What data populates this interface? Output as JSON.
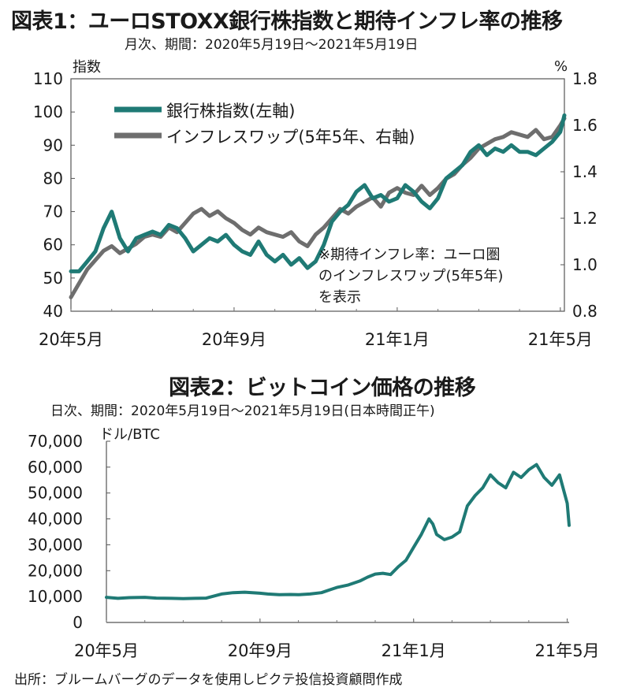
{
  "chart1": {
    "title": "図表1：ユーロSTOXX銀行株指数と期待インフレ率の推移",
    "subtitle": "月次、期間：2020年5月19日～2021年5月19日",
    "left_unit": "指数",
    "right_unit": "%",
    "note": "※期待インフレ率：ユーロ圏\nのインフレスワップ(5年5年)\nを表示",
    "colors": {
      "teal": "#1f7a75",
      "gray": "#6e6e6e"
    }
  },
  "chart2": {
    "title": "図表2：ビットコイン価格の推移",
    "subtitle": "日次、期間：2020年5月19日～2021年5月19日(日本時間正午)",
    "unit": "ドル/BTC",
    "colors": {
      "teal": "#1f7a75"
    }
  },
  "source": "出所：ブルームバーグのデータを使用しピクテ投信投資顧問作成",
  "chart_data": [
    {
      "type": "line",
      "x_ticks": [
        "20年5月",
        "20年9月",
        "21年1月",
        "21年5月"
      ],
      "x_tick_positions": [
        0,
        4,
        8,
        12
      ],
      "x_range": [
        0,
        12.1
      ],
      "y_left": {
        "range": [
          40,
          110
        ],
        "ticks": [
          40,
          50,
          60,
          70,
          80,
          90,
          100,
          110
        ]
      },
      "y_right": {
        "range": [
          0.8,
          1.8
        ],
        "ticks": [
          "0.8",
          "1.0",
          "1.2",
          "1.4",
          "1.6",
          "1.8"
        ]
      },
      "grid": false,
      "legend_placement": "top-left",
      "series": [
        {
          "name": "銀行株指数(左軸)",
          "axis": "left",
          "color": "#1f7a75",
          "points": [
            [
              0,
              52
            ],
            [
              0.2,
              52
            ],
            [
              0.4,
              55
            ],
            [
              0.6,
              58
            ],
            [
              0.8,
              65
            ],
            [
              1.0,
              70
            ],
            [
              1.1,
              66
            ],
            [
              1.2,
              62
            ],
            [
              1.4,
              58
            ],
            [
              1.6,
              62
            ],
            [
              1.8,
              63
            ],
            [
              2.0,
              64
            ],
            [
              2.2,
              63
            ],
            [
              2.4,
              66
            ],
            [
              2.6,
              65
            ],
            [
              2.8,
              62
            ],
            [
              3.0,
              58
            ],
            [
              3.2,
              60
            ],
            [
              3.4,
              62
            ],
            [
              3.6,
              61
            ],
            [
              3.8,
              63
            ],
            [
              4.0,
              60
            ],
            [
              4.2,
              58
            ],
            [
              4.4,
              57
            ],
            [
              4.6,
              61
            ],
            [
              4.8,
              57
            ],
            [
              5.0,
              55
            ],
            [
              5.2,
              57
            ],
            [
              5.4,
              54
            ],
            [
              5.6,
              56
            ],
            [
              5.8,
              53
            ],
            [
              6.0,
              55
            ],
            [
              6.2,
              60
            ],
            [
              6.4,
              67
            ],
            [
              6.6,
              70
            ],
            [
              6.8,
              72
            ],
            [
              7.0,
              76
            ],
            [
              7.2,
              78
            ],
            [
              7.4,
              74
            ],
            [
              7.6,
              75
            ],
            [
              7.8,
              73
            ],
            [
              8.0,
              74
            ],
            [
              8.2,
              78
            ],
            [
              8.4,
              76
            ],
            [
              8.6,
              73
            ],
            [
              8.8,
              71
            ],
            [
              9.0,
              74
            ],
            [
              9.2,
              80
            ],
            [
              9.4,
              82
            ],
            [
              9.6,
              84
            ],
            [
              9.8,
              88
            ],
            [
              10.0,
              90
            ],
            [
              10.2,
              87
            ],
            [
              10.4,
              89
            ],
            [
              10.6,
              88
            ],
            [
              10.8,
              90
            ],
            [
              11.0,
              88
            ],
            [
              11.2,
              88
            ],
            [
              11.4,
              87
            ],
            [
              11.6,
              89
            ],
            [
              11.8,
              91
            ],
            [
              12.0,
              94
            ],
            [
              12.1,
              99
            ]
          ]
        },
        {
          "name": "インフレスワップ(5年5年、右軸)",
          "axis": "right",
          "color": "#6e6e6e",
          "points": [
            [
              0,
              0.86
            ],
            [
              0.2,
              0.92
            ],
            [
              0.4,
              0.98
            ],
            [
              0.6,
              1.02
            ],
            [
              0.8,
              1.06
            ],
            [
              1.0,
              1.08
            ],
            [
              1.2,
              1.05
            ],
            [
              1.4,
              1.07
            ],
            [
              1.6,
              1.09
            ],
            [
              1.8,
              1.12
            ],
            [
              2.0,
              1.13
            ],
            [
              2.2,
              1.12
            ],
            [
              2.4,
              1.16
            ],
            [
              2.6,
              1.14
            ],
            [
              2.8,
              1.18
            ],
            [
              3.0,
              1.22
            ],
            [
              3.2,
              1.24
            ],
            [
              3.4,
              1.21
            ],
            [
              3.6,
              1.23
            ],
            [
              3.8,
              1.2
            ],
            [
              4.0,
              1.18
            ],
            [
              4.2,
              1.15
            ],
            [
              4.4,
              1.13
            ],
            [
              4.6,
              1.16
            ],
            [
              4.8,
              1.14
            ],
            [
              5.0,
              1.13
            ],
            [
              5.2,
              1.12
            ],
            [
              5.4,
              1.14
            ],
            [
              5.6,
              1.1
            ],
            [
              5.8,
              1.08
            ],
            [
              6.0,
              1.13
            ],
            [
              6.2,
              1.16
            ],
            [
              6.4,
              1.2
            ],
            [
              6.6,
              1.24
            ],
            [
              6.8,
              1.22
            ],
            [
              7.0,
              1.25
            ],
            [
              7.2,
              1.27
            ],
            [
              7.4,
              1.29
            ],
            [
              7.6,
              1.25
            ],
            [
              7.8,
              1.31
            ],
            [
              8.0,
              1.33
            ],
            [
              8.2,
              1.31
            ],
            [
              8.4,
              1.3
            ],
            [
              8.6,
              1.34
            ],
            [
              8.8,
              1.3
            ],
            [
              9.0,
              1.33
            ],
            [
              9.2,
              1.37
            ],
            [
              9.4,
              1.39
            ],
            [
              9.6,
              1.43
            ],
            [
              9.8,
              1.46
            ],
            [
              10.0,
              1.5
            ],
            [
              10.2,
              1.52
            ],
            [
              10.4,
              1.54
            ],
            [
              10.6,
              1.55
            ],
            [
              10.8,
              1.57
            ],
            [
              11.0,
              1.56
            ],
            [
              11.2,
              1.55
            ],
            [
              11.4,
              1.58
            ],
            [
              11.6,
              1.54
            ],
            [
              11.8,
              1.55
            ],
            [
              12.0,
              1.6
            ],
            [
              12.1,
              1.63
            ]
          ]
        }
      ]
    },
    {
      "type": "line",
      "x_ticks": [
        "20年5月",
        "20年9月",
        "21年1月",
        "21年5月"
      ],
      "x_tick_positions": [
        0,
        4,
        8,
        12
      ],
      "x_range": [
        0,
        12.05
      ],
      "y_range": [
        0,
        70000
      ],
      "y_ticks": [
        "0",
        "10,000",
        "20,000",
        "30,000",
        "40,000",
        "50,000",
        "60,000",
        "70,000"
      ],
      "grid": false,
      "series": [
        {
          "color": "#1f7a75",
          "points": [
            [
              0,
              9700
            ],
            [
              0.3,
              9300
            ],
            [
              0.6,
              9600
            ],
            [
              1.0,
              9700
            ],
            [
              1.3,
              9400
            ],
            [
              1.7,
              9300
            ],
            [
              2.0,
              9200
            ],
            [
              2.3,
              9300
            ],
            [
              2.6,
              9400
            ],
            [
              3.0,
              11000
            ],
            [
              3.3,
              11500
            ],
            [
              3.6,
              11700
            ],
            [
              4.0,
              11300
            ],
            [
              4.2,
              11000
            ],
            [
              4.5,
              10700
            ],
            [
              4.8,
              10800
            ],
            [
              5.0,
              10700
            ],
            [
              5.3,
              11000
            ],
            [
              5.6,
              11500
            ],
            [
              5.8,
              12500
            ],
            [
              6.0,
              13500
            ],
            [
              6.3,
              14500
            ],
            [
              6.6,
              16000
            ],
            [
              6.8,
              17500
            ],
            [
              7.0,
              18700
            ],
            [
              7.2,
              19000
            ],
            [
              7.4,
              18500
            ],
            [
              7.6,
              21500
            ],
            [
              7.8,
              24000
            ],
            [
              8.0,
              29000
            ],
            [
              8.2,
              34000
            ],
            [
              8.4,
              40000
            ],
            [
              8.5,
              38000
            ],
            [
              8.6,
              34000
            ],
            [
              8.8,
              32000
            ],
            [
              9.0,
              33000
            ],
            [
              9.2,
              35000
            ],
            [
              9.4,
              45000
            ],
            [
              9.6,
              49000
            ],
            [
              9.8,
              52000
            ],
            [
              10.0,
              57000
            ],
            [
              10.2,
              54000
            ],
            [
              10.4,
              52000
            ],
            [
              10.6,
              58000
            ],
            [
              10.8,
              56000
            ],
            [
              11.0,
              59000
            ],
            [
              11.2,
              61000
            ],
            [
              11.4,
              56000
            ],
            [
              11.6,
              53000
            ],
            [
              11.8,
              57000
            ],
            [
              12.0,
              46000
            ],
            [
              12.05,
              37500
            ]
          ]
        }
      ]
    }
  ]
}
